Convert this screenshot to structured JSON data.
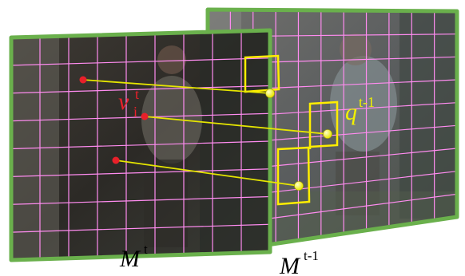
{
  "frames": {
    "current": {
      "label": "M",
      "superscript": "t"
    },
    "previous": {
      "label": "M",
      "superscript": "t-1"
    }
  },
  "annotations": {
    "node": {
      "base": "v",
      "sub": "i",
      "sup": "t"
    },
    "patch": {
      "base": "q",
      "sup": "t-1"
    }
  },
  "colors": {
    "frame_border": "#6ab04c",
    "grid": "#ff8cf0",
    "patch": "#ffee00",
    "link": "#e6e600",
    "source_point": "#e8202a",
    "target_point": "#f2f200",
    "node_label": "#e8202a",
    "patch_label": "#f2f200"
  }
}
